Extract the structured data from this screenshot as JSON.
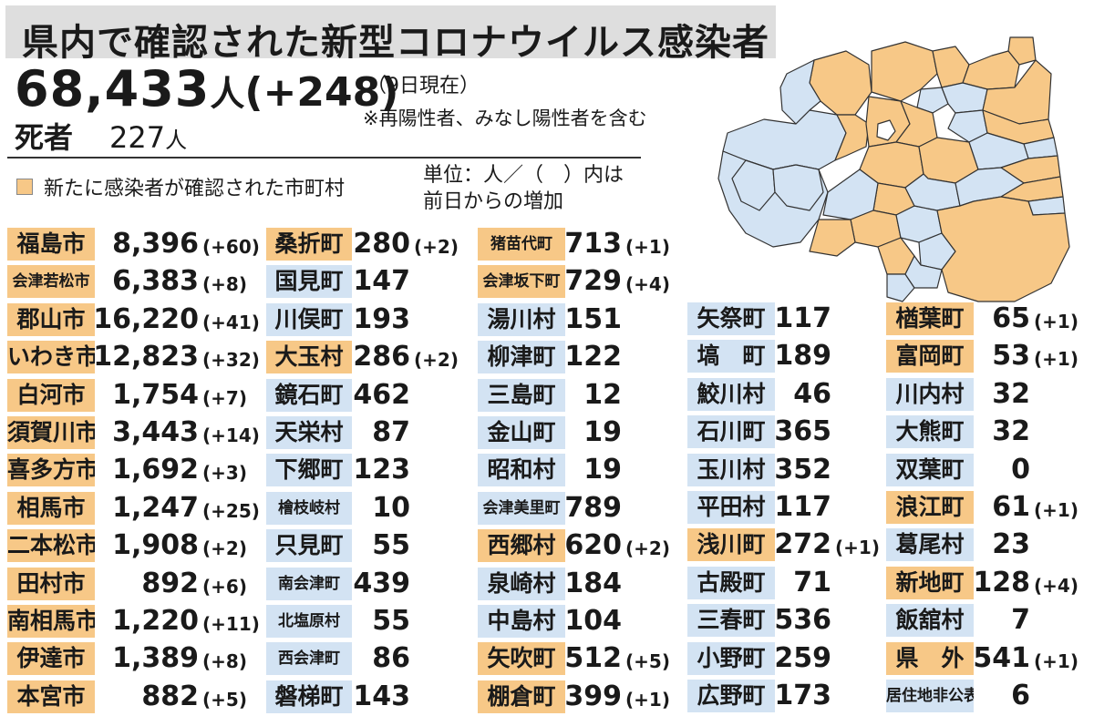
{
  "header": {
    "title": "県内で確認された新型コロナウイルス感染者",
    "total_count": "68,433",
    "total_unit": "人",
    "total_delta": "(+248)",
    "as_of": "（9日現在）",
    "note": "※再陽性者、みなし陽性者を含む",
    "deaths_label": "死者",
    "deaths_count": "227",
    "deaths_unit": "人"
  },
  "legend": {
    "new_case_label": "新たに感染者が確認された市町村",
    "unit_line1": "単位：人／（　）内は",
    "unit_line2": "前日からの増加"
  },
  "colors": {
    "new_case": "#f7c887",
    "no_new_case": "#d3e3f3",
    "title_bg": "#dedede"
  },
  "columns": [
    [
      {
        "name": "福島市",
        "value": "8,396",
        "delta": "(+60)",
        "new": true
      },
      {
        "name": "会津若松市",
        "value": "6,383",
        "delta": "(+8)",
        "new": true,
        "small": true
      },
      {
        "name": "郡山市",
        "value": "16,220",
        "delta": "(+41)",
        "new": true
      },
      {
        "name": "いわき市",
        "value": "12,823",
        "delta": "(+32)",
        "new": true
      },
      {
        "name": "白河市",
        "value": "1,754",
        "delta": "(+7)",
        "new": true
      },
      {
        "name": "須賀川市",
        "value": "3,443",
        "delta": "(+14)",
        "new": true
      },
      {
        "name": "喜多方市",
        "value": "1,692",
        "delta": "(+3)",
        "new": true
      },
      {
        "name": "相馬市",
        "value": "1,247",
        "delta": "(+25)",
        "new": true
      },
      {
        "name": "二本松市",
        "value": "1,908",
        "delta": "(+2)",
        "new": true
      },
      {
        "name": "田村市",
        "value": "892",
        "delta": "(+6)",
        "new": true
      },
      {
        "name": "南相馬市",
        "value": "1,220",
        "delta": "(+11)",
        "new": true
      },
      {
        "name": "伊達市",
        "value": "1,389",
        "delta": "(+8)",
        "new": true
      },
      {
        "name": "本宮市",
        "value": "882",
        "delta": "(+5)",
        "new": true
      }
    ],
    [
      {
        "name": "桑折町",
        "value": "280",
        "delta": "(+2)",
        "new": true
      },
      {
        "name": "国見町",
        "value": "147",
        "delta": "",
        "new": false
      },
      {
        "name": "川俣町",
        "value": "193",
        "delta": "",
        "new": false
      },
      {
        "name": "大玉村",
        "value": "286",
        "delta": "(+2)",
        "new": true
      },
      {
        "name": "鏡石町",
        "value": "462",
        "delta": "",
        "new": false
      },
      {
        "name": "天栄村",
        "value": "87",
        "delta": "",
        "new": false
      },
      {
        "name": "下郷町",
        "value": "123",
        "delta": "",
        "new": false
      },
      {
        "name": "檜枝岐村",
        "value": "10",
        "delta": "",
        "new": false,
        "small": true
      },
      {
        "name": "只見町",
        "value": "55",
        "delta": "",
        "new": false
      },
      {
        "name": "南会津町",
        "value": "439",
        "delta": "",
        "new": false,
        "small": true
      },
      {
        "name": "北塩原村",
        "value": "55",
        "delta": "",
        "new": false,
        "small": true
      },
      {
        "name": "西会津町",
        "value": "86",
        "delta": "",
        "new": false,
        "small": true
      },
      {
        "name": "磐梯町",
        "value": "143",
        "delta": "",
        "new": false
      }
    ],
    [
      {
        "name": "猪苗代町",
        "value": "713",
        "delta": "(+1)",
        "new": true,
        "small": true
      },
      {
        "name": "会津坂下町",
        "value": "729",
        "delta": "(+4)",
        "new": true,
        "small": true
      },
      {
        "name": "湯川村",
        "value": "151",
        "delta": "",
        "new": false
      },
      {
        "name": "柳津町",
        "value": "122",
        "delta": "",
        "new": false
      },
      {
        "name": "三島町",
        "value": "12",
        "delta": "",
        "new": false
      },
      {
        "name": "金山町",
        "value": "19",
        "delta": "",
        "new": false
      },
      {
        "name": "昭和村",
        "value": "19",
        "delta": "",
        "new": false
      },
      {
        "name": "会津美里町",
        "value": "789",
        "delta": "",
        "new": false,
        "small": true
      },
      {
        "name": "西郷村",
        "value": "620",
        "delta": "(+2)",
        "new": true
      },
      {
        "name": "泉崎村",
        "value": "184",
        "delta": "",
        "new": false
      },
      {
        "name": "中島村",
        "value": "104",
        "delta": "",
        "new": false
      },
      {
        "name": "矢吹町",
        "value": "512",
        "delta": "(+5)",
        "new": true
      },
      {
        "name": "棚倉町",
        "value": "399",
        "delta": "(+1)",
        "new": true
      }
    ],
    [
      {
        "name": "矢祭町",
        "value": "117",
        "delta": "",
        "new": false
      },
      {
        "name": "塙　町",
        "value": "189",
        "delta": "",
        "new": false
      },
      {
        "name": "鮫川村",
        "value": "46",
        "delta": "",
        "new": false
      },
      {
        "name": "石川町",
        "value": "365",
        "delta": "",
        "new": false
      },
      {
        "name": "玉川村",
        "value": "352",
        "delta": "",
        "new": false
      },
      {
        "name": "平田村",
        "value": "117",
        "delta": "",
        "new": false
      },
      {
        "name": "浅川町",
        "value": "272",
        "delta": "(+1)",
        "new": true
      },
      {
        "name": "古殿町",
        "value": "71",
        "delta": "",
        "new": false
      },
      {
        "name": "三春町",
        "value": "536",
        "delta": "",
        "new": false
      },
      {
        "name": "小野町",
        "value": "259",
        "delta": "",
        "new": false
      },
      {
        "name": "広野町",
        "value": "173",
        "delta": "",
        "new": false
      }
    ],
    [
      {
        "name": "楢葉町",
        "value": "65",
        "delta": "(+1)",
        "new": true
      },
      {
        "name": "富岡町",
        "value": "53",
        "delta": "(+1)",
        "new": true
      },
      {
        "name": "川内村",
        "value": "32",
        "delta": "",
        "new": false
      },
      {
        "name": "大熊町",
        "value": "32",
        "delta": "",
        "new": false
      },
      {
        "name": "双葉町",
        "value": "0",
        "delta": "",
        "new": false
      },
      {
        "name": "浪江町",
        "value": "61",
        "delta": "(+1)",
        "new": true
      },
      {
        "name": "葛尾村",
        "value": "23",
        "delta": "",
        "new": false
      },
      {
        "name": "新地町",
        "value": "128",
        "delta": "(+4)",
        "new": true
      },
      {
        "name": "飯舘村",
        "value": "7",
        "delta": "",
        "new": false
      },
      {
        "name": "県　外",
        "value": "541",
        "delta": "(+1)",
        "new": true
      },
      {
        "name": "居住地非公表",
        "value": "6",
        "delta": "",
        "new": false,
        "small": true
      }
    ]
  ]
}
